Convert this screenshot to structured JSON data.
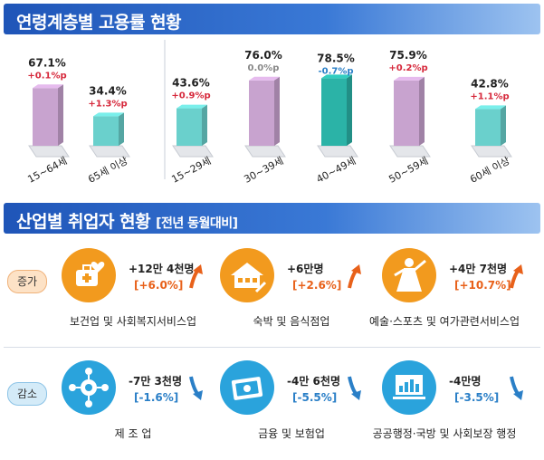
{
  "employment_title": "연령계층별 고용률 현황",
  "industry_title": "산업별 취업자 현황",
  "industry_subtitle": "[전년 동월대비]",
  "chart_data": {
    "type": "bar",
    "title": "연령계층별 고용률 현황",
    "categories": [
      "15~64세",
      "65세 이상",
      "15~29세",
      "30~39세",
      "40~49세",
      "50~59세",
      "60세 이상"
    ],
    "values": [
      67.1,
      34.4,
      43.6,
      76.0,
      78.5,
      75.9,
      42.8
    ],
    "value_labels": [
      "67.1%",
      "34.4%",
      "43.6%",
      "76.0%",
      "78.5%",
      "75.9%",
      "42.8%"
    ],
    "changes": [
      "+0.1%p",
      "+1.3%p",
      "+0.9%p",
      "0.0%p",
      "-0.7%p",
      "+0.2%p",
      "+1.1%p"
    ],
    "change_dirs": [
      "up",
      "up",
      "up",
      "flat",
      "down",
      "up",
      "up"
    ],
    "bar_colors": [
      "#c8a3cf",
      "#6ad0cc",
      "#6ad0cc",
      "#c8a3cf",
      "#2bb3a7",
      "#c8a3cf",
      "#6ad0cc"
    ],
    "groups": [
      [
        "15~64세",
        "65세 이상"
      ],
      [
        "15~29세",
        "30~39세",
        "40~49세",
        "50~59세",
        "60세 이상"
      ]
    ]
  },
  "industry": {
    "increase_label": "증가",
    "decrease_label": "감소",
    "increase": [
      {
        "icon": "healthcare-icon",
        "value": "+12만 4천명",
        "change": "[+6.0%]",
        "name": "보건업 및 사회복지서비스업"
      },
      {
        "icon": "lodging-icon",
        "value": "+6만명",
        "change": "[+2.6%]",
        "name": "숙박 및 음식점업"
      },
      {
        "icon": "performer-icon",
        "value": "+4만 7천명",
        "change": "[+10.7%]",
        "name": "예술·스포츠 및 여가관련서비스업"
      }
    ],
    "decrease": [
      {
        "icon": "manufacturing-icon",
        "value": "-7만 3천명",
        "change": "[-1.6%]",
        "name": "제 조 업"
      },
      {
        "icon": "finance-icon",
        "value": "-4만 6천명",
        "change": "[-5.5%]",
        "name": "금융 및 보험업"
      },
      {
        "icon": "public-admin-icon",
        "value": "-4만명",
        "change": "[-3.5%]",
        "name": "공공행정·국방 및 사회보장 행정"
      }
    ]
  },
  "colors": {
    "increase": "#f29a1e",
    "decrease": "#2aa3dc",
    "up_text": "#e8611a",
    "down_text": "#2a7fc7",
    "banner": "#2a62c4"
  }
}
